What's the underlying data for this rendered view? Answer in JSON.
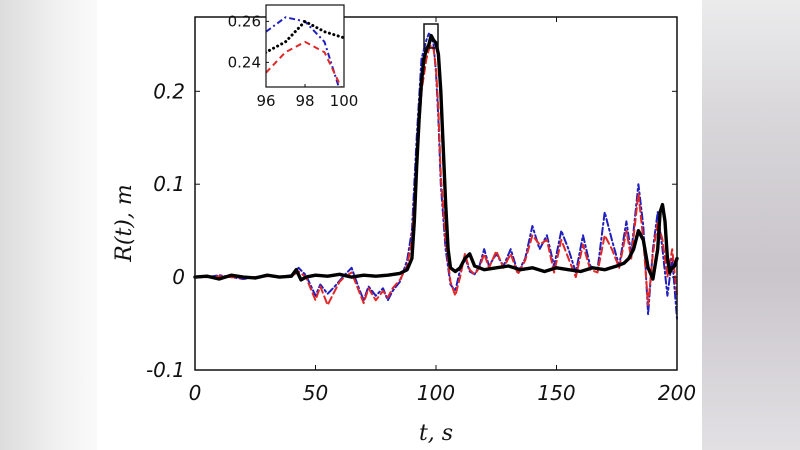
{
  "chart_data": {
    "type": "line",
    "xlabel": "t, s",
    "ylabel": "R(t), m",
    "xlim": [
      0,
      200
    ],
    "ylim": [
      -0.1,
      0.28
    ],
    "xticks": [
      "0",
      "50",
      "100",
      "150",
      "200"
    ],
    "yticks": [
      "-0.1",
      "0",
      "0.1",
      "0.2"
    ],
    "colors": {
      "blue": "#1f1fbf",
      "red": "#e02828",
      "black": "#000000"
    },
    "series": [
      {
        "style": "blue-dashdot",
        "x": [
          0,
          5,
          10,
          15,
          20,
          25,
          30,
          35,
          40,
          43,
          46,
          50,
          52,
          55,
          58,
          60,
          62,
          65,
          68,
          70,
          72,
          75,
          78,
          80,
          82,
          85,
          88,
          90,
          92,
          94,
          96,
          97,
          98,
          99,
          100,
          101,
          102,
          104,
          106,
          108,
          110,
          112,
          114,
          116,
          118,
          120,
          122,
          125,
          128,
          131,
          134,
          137,
          140,
          143,
          146,
          149,
          152,
          155,
          158,
          161,
          164,
          167,
          170,
          173,
          176,
          179,
          181,
          184,
          186,
          188,
          190,
          192,
          194,
          196,
          198,
          200
        ],
        "y": [
          0,
          0,
          0.002,
          0,
          -0.002,
          0,
          0.002,
          0,
          0.002,
          0.01,
          0.002,
          -0.02,
          -0.008,
          -0.018,
          -0.01,
          -0.004,
          0.002,
          0.01,
          -0.012,
          -0.025,
          -0.01,
          -0.02,
          -0.012,
          -0.025,
          -0.015,
          -0.005,
          0.018,
          0.05,
          0.15,
          0.235,
          0.255,
          0.262,
          0.26,
          0.25,
          0.22,
          0.17,
          0.1,
          0.03,
          -0.008,
          -0.015,
          0.008,
          0.022,
          0.006,
          0.003,
          0.012,
          0.03,
          0.012,
          0.025,
          0.012,
          0.03,
          0.005,
          0.02,
          0.055,
          0.03,
          0.045,
          0.012,
          0.05,
          0.03,
          0.005,
          0.045,
          0.012,
          0.008,
          0.07,
          0.04,
          0.012,
          0.06,
          0.025,
          0.1,
          0.055,
          -0.04,
          0.03,
          0.07,
          0.03,
          -0.02,
          0.02,
          -0.045
        ]
      },
      {
        "style": "red-dashed",
        "x": [
          0,
          5,
          10,
          15,
          20,
          25,
          30,
          35,
          40,
          43,
          46,
          50,
          52,
          55,
          58,
          60,
          62,
          65,
          68,
          70,
          72,
          75,
          78,
          80,
          82,
          85,
          88,
          90,
          92,
          94,
          96,
          97,
          98,
          99,
          100,
          101,
          102,
          104,
          106,
          108,
          110,
          112,
          114,
          116,
          118,
          120,
          122,
          125,
          128,
          131,
          134,
          137,
          140,
          143,
          146,
          149,
          152,
          155,
          158,
          161,
          164,
          167,
          170,
          173,
          176,
          179,
          181,
          184,
          186,
          188,
          190,
          192,
          194,
          196,
          198,
          200
        ],
        "y": [
          0,
          0,
          0.001,
          0,
          -0.001,
          0,
          0.001,
          0,
          0.001,
          0.006,
          0.0,
          -0.025,
          -0.01,
          -0.03,
          -0.015,
          -0.005,
          0.0,
          0.005,
          -0.015,
          -0.028,
          -0.012,
          -0.025,
          -0.015,
          -0.022,
          -0.012,
          -0.003,
          0.012,
          0.04,
          0.12,
          0.2,
          0.235,
          0.245,
          0.25,
          0.245,
          0.225,
          0.18,
          0.11,
          0.04,
          -0.005,
          -0.02,
          0.0,
          0.025,
          0.008,
          0.003,
          0.01,
          0.025,
          0.01,
          0.028,
          0.01,
          0.025,
          0.003,
          0.018,
          0.045,
          0.035,
          0.04,
          0.005,
          0.04,
          0.02,
          0.0,
          0.035,
          0.008,
          0.005,
          0.045,
          0.03,
          0.01,
          0.05,
          0.02,
          0.09,
          0.04,
          -0.03,
          0.025,
          0.06,
          0.04,
          0.0,
          0.03,
          -0.02
        ]
      },
      {
        "style": "black-dotted",
        "x": [
          0,
          5,
          10,
          15,
          20,
          25,
          30,
          35,
          40,
          42,
          44,
          46,
          50,
          55,
          60,
          65,
          70,
          75,
          80,
          85,
          88,
          90,
          91,
          92,
          93,
          94,
          95,
          96,
          97,
          98,
          99,
          100,
          101,
          102,
          103,
          104,
          105,
          106,
          108,
          110,
          112,
          114,
          116,
          118,
          120,
          125,
          130,
          135,
          140,
          145,
          150,
          155,
          160,
          165,
          170,
          175,
          178,
          180,
          182,
          184,
          186,
          188,
          190,
          192,
          193,
          194,
          195,
          196,
          197,
          198,
          199,
          200
        ],
        "y": [
          0.0,
          0.001,
          -0.002,
          0.002,
          0.0,
          -0.001,
          0.002,
          0.0,
          0.001,
          0.008,
          -0.003,
          0.0,
          0.002,
          0.001,
          0.003,
          0.0,
          0.002,
          0.001,
          0.002,
          0.004,
          0.008,
          0.02,
          0.06,
          0.12,
          0.17,
          0.21,
          0.235,
          0.245,
          0.25,
          0.26,
          0.255,
          0.252,
          0.24,
          0.2,
          0.14,
          0.08,
          0.03,
          0.01,
          0.006,
          0.01,
          0.02,
          0.025,
          0.012,
          0.01,
          0.008,
          0.01,
          0.012,
          0.008,
          0.01,
          0.006,
          0.01,
          0.008,
          0.006,
          0.01,
          0.008,
          0.012,
          0.015,
          0.02,
          0.03,
          0.05,
          0.04,
          0.01,
          -0.002,
          0.03,
          0.07,
          0.078,
          0.06,
          0.02,
          0.005,
          0.01,
          0.012,
          0.02
        ]
      }
    ],
    "inset": {
      "xlim": [
        96,
        100
      ],
      "ylim": [
        0.228,
        0.268
      ],
      "xticks": [
        "96",
        "98",
        "100"
      ],
      "yticks": [
        "0.24",
        "0.26"
      ]
    }
  }
}
